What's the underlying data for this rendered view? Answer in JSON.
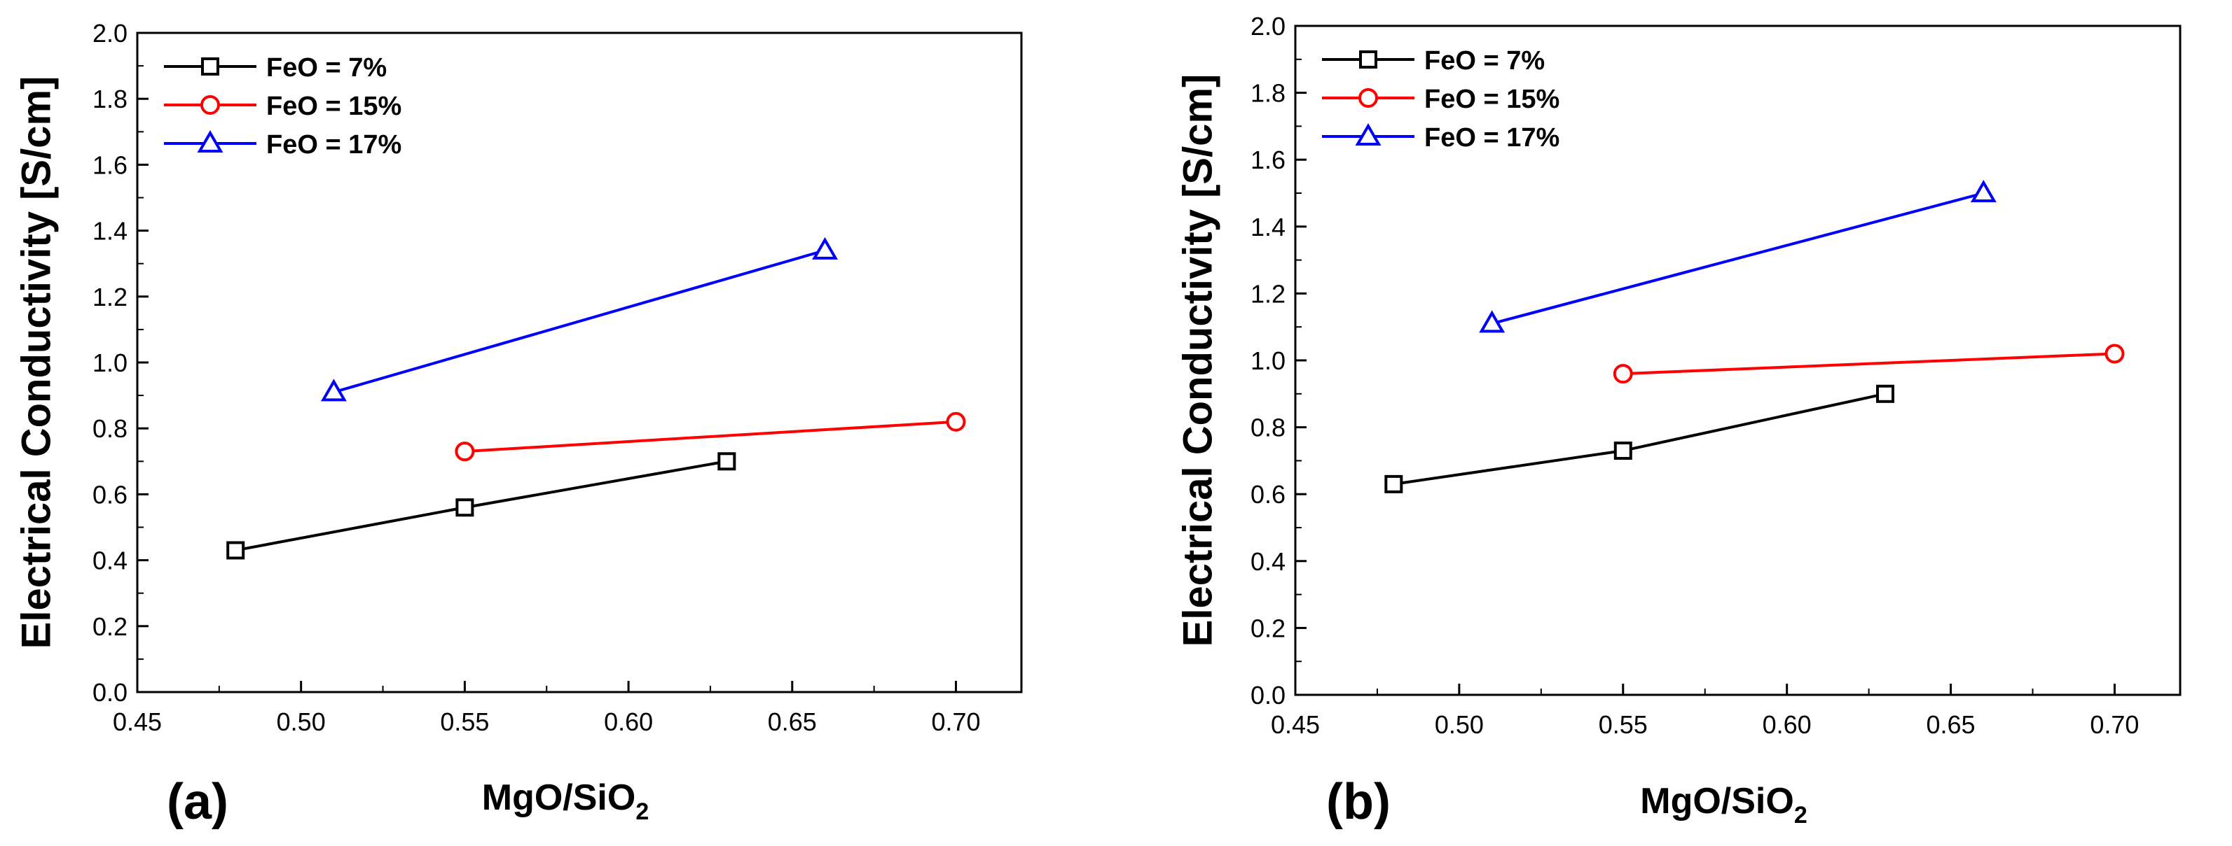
{
  "chart_data": [
    {
      "type": "line",
      "panel_label": "(a)",
      "title": "",
      "xlabel": "MgO/SiO",
      "xlabel_subscript": "2",
      "ylabel": "Electrical Conductivity [S/cm]",
      "xlim": [
        0.45,
        0.72
      ],
      "ylim": [
        0.0,
        2.0
      ],
      "xticks": [
        "0.45",
        "0.50",
        "0.55",
        "0.60",
        "0.65",
        "0.70"
      ],
      "xtick_values": [
        0.45,
        0.5,
        0.55,
        0.6,
        0.65,
        0.7
      ],
      "yticks": [
        "0.0",
        "0.2",
        "0.4",
        "0.6",
        "0.8",
        "1.0",
        "1.2",
        "1.4",
        "1.6",
        "1.8",
        "2.0"
      ],
      "ytick_values": [
        0.0,
        0.2,
        0.4,
        0.6,
        0.8,
        1.0,
        1.2,
        1.4,
        1.6,
        1.8,
        2.0
      ],
      "grid": false,
      "legend_position": "top-left",
      "series": [
        {
          "name": "FeO = 7%",
          "color": "#000000",
          "marker": "square",
          "x": [
            0.48,
            0.55,
            0.63
          ],
          "y": [
            0.43,
            0.56,
            0.7
          ]
        },
        {
          "name": "FeO = 15%",
          "color": "#ff0000",
          "marker": "circle",
          "x": [
            0.55,
            0.7
          ],
          "y": [
            0.73,
            0.82
          ]
        },
        {
          "name": "FeO = 17%",
          "color": "#0000ff",
          "marker": "triangle",
          "x": [
            0.51,
            0.66
          ],
          "y": [
            0.91,
            1.34
          ]
        }
      ]
    },
    {
      "type": "line",
      "panel_label": "(b)",
      "title": "",
      "xlabel": "MgO/SiO",
      "xlabel_subscript": "2",
      "ylabel": "Electrical Conductivity [S/cm]",
      "xlim": [
        0.45,
        0.72
      ],
      "ylim": [
        0.0,
        2.0
      ],
      "xticks": [
        "0.45",
        "0.50",
        "0.55",
        "0.60",
        "0.65",
        "0.70"
      ],
      "xtick_values": [
        0.45,
        0.5,
        0.55,
        0.6,
        0.65,
        0.7
      ],
      "yticks": [
        "0.0",
        "0.2",
        "0.4",
        "0.6",
        "0.8",
        "1.0",
        "1.2",
        "1.4",
        "1.6",
        "1.8",
        "2.0"
      ],
      "ytick_values": [
        0.0,
        0.2,
        0.4,
        0.6,
        0.8,
        1.0,
        1.2,
        1.4,
        1.6,
        1.8,
        2.0
      ],
      "grid": false,
      "legend_position": "top-left",
      "series": [
        {
          "name": "FeO = 7%",
          "color": "#000000",
          "marker": "square",
          "x": [
            0.48,
            0.55,
            0.63
          ],
          "y": [
            0.63,
            0.73,
            0.9
          ]
        },
        {
          "name": "FeO = 15%",
          "color": "#ff0000",
          "marker": "circle",
          "x": [
            0.55,
            0.7
          ],
          "y": [
            0.96,
            1.02
          ]
        },
        {
          "name": "FeO = 17%",
          "color": "#0000ff",
          "marker": "triangle",
          "x": [
            0.51,
            0.66
          ],
          "y": [
            1.11,
            1.5
          ]
        }
      ]
    }
  ]
}
